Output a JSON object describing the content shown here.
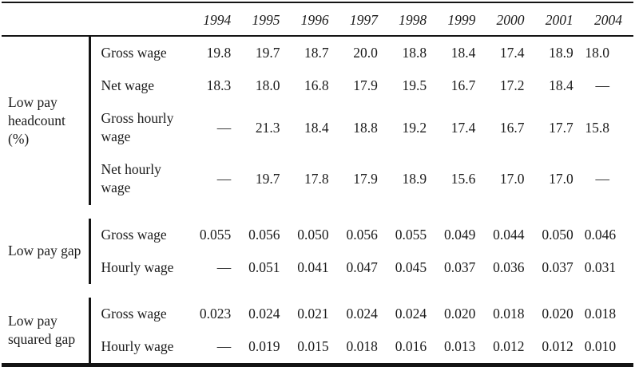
{
  "table": {
    "year_headers": [
      "1994",
      "1995",
      "1996",
      "1997",
      "1998",
      "1999",
      "2000",
      "2001",
      "2004"
    ],
    "sections": [
      {
        "label": "Low pay headcount (%)",
        "rows": [
          {
            "label": "Gross wage",
            "values": [
              "19.8",
              "19.7",
              "18.7",
              "20.0",
              "18.8",
              "18.4",
              "17.4",
              "18.9",
              "18.0"
            ]
          },
          {
            "label": "Net wage",
            "values": [
              "18.3",
              "18.0",
              "16.8",
              "17.9",
              "19.5",
              "16.7",
              "17.2",
              "18.4",
              "—"
            ]
          },
          {
            "label": "Gross hourly wage",
            "values": [
              "—",
              "21.3",
              "18.4",
              "18.8",
              "19.2",
              "17.4",
              "16.7",
              "17.7",
              "15.8"
            ]
          },
          {
            "label": "Net hourly wage",
            "values": [
              "—",
              "19.7",
              "17.8",
              "17.9",
              "18.9",
              "15.6",
              "17.0",
              "17.0",
              "—"
            ]
          }
        ]
      },
      {
        "label": "Low pay gap",
        "rows": [
          {
            "label": "Gross wage",
            "values": [
              "0.055",
              "0.056",
              "0.050",
              "0.056",
              "0.055",
              "0.049",
              "0.044",
              "0.050",
              "0.046"
            ]
          },
          {
            "label": "Hourly wage",
            "values": [
              "—",
              "0.051",
              "0.041",
              "0.047",
              "0.045",
              "0.037",
              "0.036",
              "0.037",
              "0.031"
            ]
          }
        ]
      },
      {
        "label": "Low pay squared gap",
        "rows": [
          {
            "label": "Gross wage",
            "values": [
              "0.023",
              "0.024",
              "0.021",
              "0.024",
              "0.024",
              "0.020",
              "0.018",
              "0.020",
              "0.018"
            ]
          },
          {
            "label": "Hourly wage",
            "values": [
              "—",
              "0.019",
              "0.015",
              "0.018",
              "0.016",
              "0.013",
              "0.012",
              "0.012",
              "0.010"
            ]
          }
        ]
      }
    ],
    "colors": {
      "rule": "#141414",
      "text": "#1b1b1b",
      "background": "#ffffff"
    }
  }
}
